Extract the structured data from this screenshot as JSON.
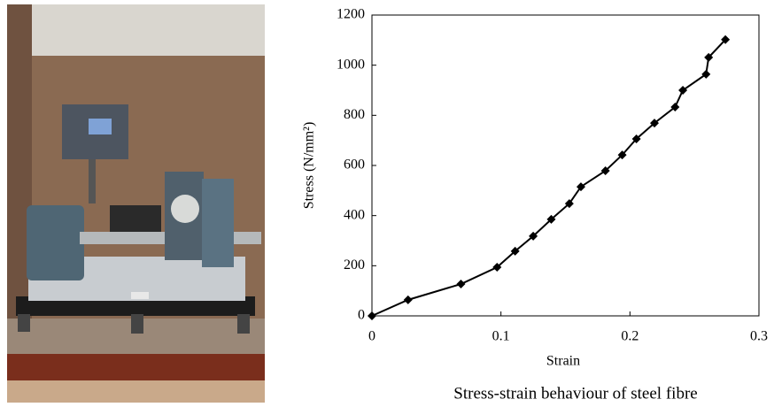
{
  "chart_data": {
    "type": "line",
    "xlabel": "Strain",
    "ylabel": "Stress (N/mm²)",
    "caption": "Stress-strain behaviour of steel fibre",
    "x": [
      0,
      0.028,
      0.069,
      0.097,
      0.111,
      0.125,
      0.139,
      0.153,
      0.162,
      0.181,
      0.194,
      0.205,
      0.219,
      0.235,
      0.241,
      0.259,
      0.261,
      0.274
    ],
    "series": [
      {
        "color": "#000000",
        "marker": "diamond",
        "values": [
          0,
          64,
          127,
          194,
          258,
          318,
          385,
          448,
          515,
          579,
          642,
          706,
          769,
          833,
          900,
          964,
          1031,
          1102
        ]
      }
    ],
    "xlim": [
      0,
      0.3
    ],
    "ylim": [
      0,
      1200
    ],
    "xticks": [
      0,
      0.1,
      0.2,
      0.3
    ],
    "yticks": [
      0,
      200,
      400,
      600,
      800,
      1000,
      1200
    ],
    "grid": false
  }
}
